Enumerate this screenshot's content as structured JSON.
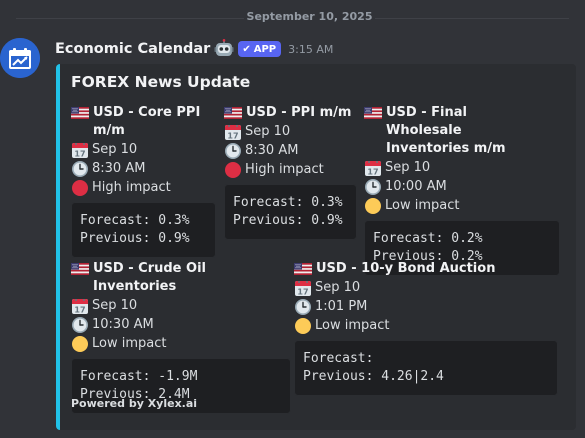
{
  "divider": {
    "date": "September 10, 2025"
  },
  "message": {
    "username": "Economic Calendar",
    "app_badge": "APP",
    "timestamp": "3:15 AM"
  },
  "embed": {
    "title": "FOREX News Update",
    "accent_color": "#21c2e8",
    "footer": "Powered by Xylex.ai",
    "events": [
      {
        "name": "USD - Core PPI m/m",
        "date": "Sep 10",
        "time": "8:30 AM",
        "impact": "High impact",
        "impact_color": "#dd2e44",
        "forecast_line": "Forecast: 0.3%",
        "previous_line": "Previous: 0.9%"
      },
      {
        "name": "USD - PPI m/m",
        "date": "Sep 10",
        "time": "8:30 AM",
        "impact": "High impact",
        "impact_color": "#dd2e44",
        "forecast_line": "Forecast: 0.3%",
        "previous_line": "Previous: 0.9%"
      },
      {
        "name": "USD - Final Wholesale Inventories m/m",
        "date": "Sep 10",
        "time": "10:00 AM",
        "impact": "Low impact",
        "impact_color": "#fdcb58",
        "forecast_line": "Forecast: 0.2%",
        "previous_line": "Previous: 0.2%"
      },
      {
        "name": "USD - Crude Oil Inventories",
        "date": "Sep 10",
        "time": "10:30 AM",
        "impact": "Low impact",
        "impact_color": "#fdcb58",
        "forecast_line": "Forecast: -1.9M",
        "previous_line": "Previous: 2.4M"
      },
      {
        "name": "USD - 10-y Bond Auction",
        "date": "Sep 10",
        "time": "1:01 PM",
        "impact": "Low impact",
        "impact_color": "#fdcb58",
        "forecast_line": "Forecast:",
        "previous_line": "Previous: 4.26|2.4"
      }
    ]
  }
}
